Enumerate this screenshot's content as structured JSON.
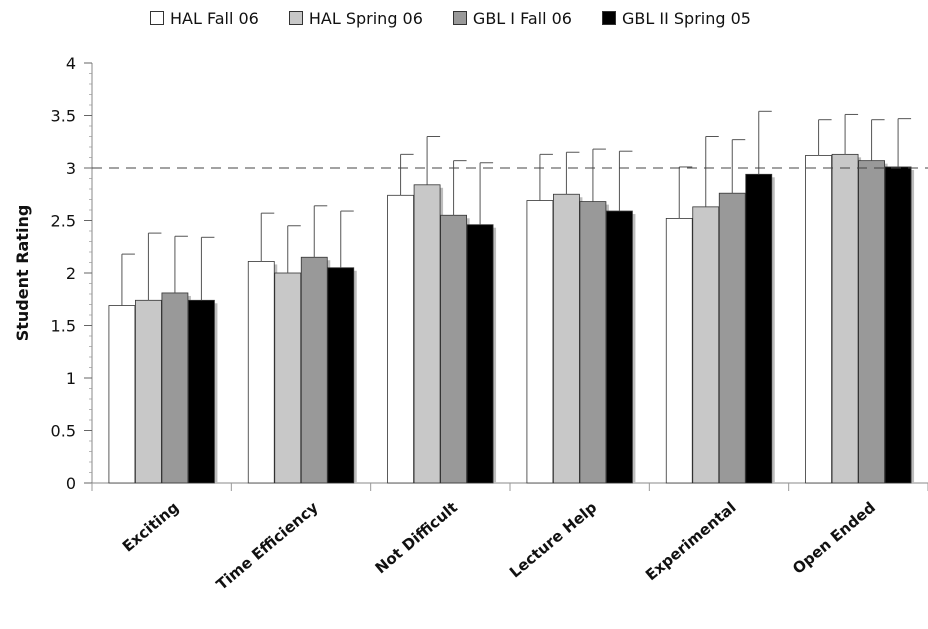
{
  "chart_data": {
    "type": "bar",
    "title": "",
    "xlabel": "",
    "ylabel": "Student Rating",
    "ylim": [
      0,
      4
    ],
    "yticks": [
      "0",
      "0.5",
      "1",
      "1.5",
      "2",
      "2.5",
      "3",
      "3.5",
      "4"
    ],
    "reference_line": 3,
    "legend_position": "top",
    "categories": [
      "Exciting",
      "Time Efficiency",
      "Not Difficult",
      "Lecture Help",
      "Experimental",
      "Open Ended"
    ],
    "series": [
      {
        "name": "HAL Fall 06",
        "color": "#ffffff",
        "values": [
          1.69,
          2.11,
          2.74,
          2.69,
          2.52,
          3.12
        ],
        "errors": [
          0.49,
          0.46,
          0.39,
          0.44,
          0.49,
          0.34
        ]
      },
      {
        "name": "HAL Spring 06",
        "color": "#c8c8c8",
        "values": [
          1.74,
          2.0,
          2.84,
          2.75,
          2.63,
          3.13
        ],
        "errors": [
          0.64,
          0.45,
          0.46,
          0.4,
          0.67,
          0.38
        ]
      },
      {
        "name": "GBL I Fall 06",
        "color": "#999999",
        "values": [
          1.81,
          2.15,
          2.55,
          2.68,
          2.76,
          3.07
        ],
        "errors": [
          0.54,
          0.49,
          0.52,
          0.5,
          0.51,
          0.39
        ]
      },
      {
        "name": "GBL II Spring 05",
        "color": "#000000",
        "values": [
          1.74,
          2.05,
          2.46,
          2.59,
          2.94,
          3.01
        ],
        "errors": [
          0.6,
          0.54,
          0.59,
          0.57,
          0.6,
          0.46
        ]
      }
    ]
  }
}
